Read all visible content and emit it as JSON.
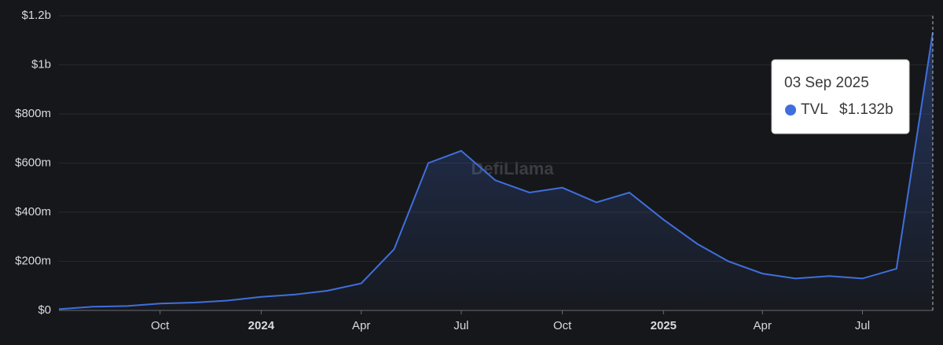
{
  "chart_data": {
    "type": "area",
    "watermark": "DefiLlama",
    "x": [
      "2023-07",
      "2023-08",
      "2023-09",
      "2023-10",
      "2023-11",
      "2023-12",
      "2024-01",
      "2024-02",
      "2024-03",
      "2024-04",
      "2024-05",
      "2024-06",
      "2024-07",
      "2024-08",
      "2024-09",
      "2024-10",
      "2024-11",
      "2024-12",
      "2025-01",
      "2025-02",
      "2025-03",
      "2025-04",
      "2025-05",
      "2025-06",
      "2025-07",
      "2025-08",
      "2025-09-03"
    ],
    "series": [
      {
        "name": "TVL",
        "color": "#3f6fdc",
        "values": [
          5000000,
          15000000,
          18000000,
          28000000,
          32000000,
          40000000,
          55000000,
          65000000,
          80000000,
          110000000,
          250000000,
          600000000,
          650000000,
          530000000,
          480000000,
          500000000,
          440000000,
          480000000,
          370000000,
          270000000,
          200000000,
          150000000,
          130000000,
          140000000,
          130000000,
          170000000,
          1132000000
        ]
      }
    ],
    "xlim": [
      "2023-07",
      "2025-09-03"
    ],
    "xticks": [
      {
        "value": "2023-10",
        "label": "Oct"
      },
      {
        "value": "2024-01",
        "label": "2024"
      },
      {
        "value": "2024-04",
        "label": "Apr"
      },
      {
        "value": "2024-07",
        "label": "Jul"
      },
      {
        "value": "2024-10",
        "label": "Oct"
      },
      {
        "value": "2025-01",
        "label": "2025"
      },
      {
        "value": "2025-04",
        "label": "Apr"
      },
      {
        "value": "2025-07",
        "label": "Jul"
      }
    ],
    "ylim": [
      0,
      1200000000
    ],
    "yticks": [
      {
        "value": 0,
        "label": "$0"
      },
      {
        "value": 200000000,
        "label": "$200m"
      },
      {
        "value": 400000000,
        "label": "$400m"
      },
      {
        "value": 600000000,
        "label": "$600m"
      },
      {
        "value": 800000000,
        "label": "$800m"
      },
      {
        "value": 1000000000,
        "label": "$1b"
      },
      {
        "value": 1200000000,
        "label": "$1.2b"
      }
    ],
    "grid": true,
    "tooltip": {
      "title": "03 Sep 2025",
      "label": "$1.132b"
    }
  }
}
